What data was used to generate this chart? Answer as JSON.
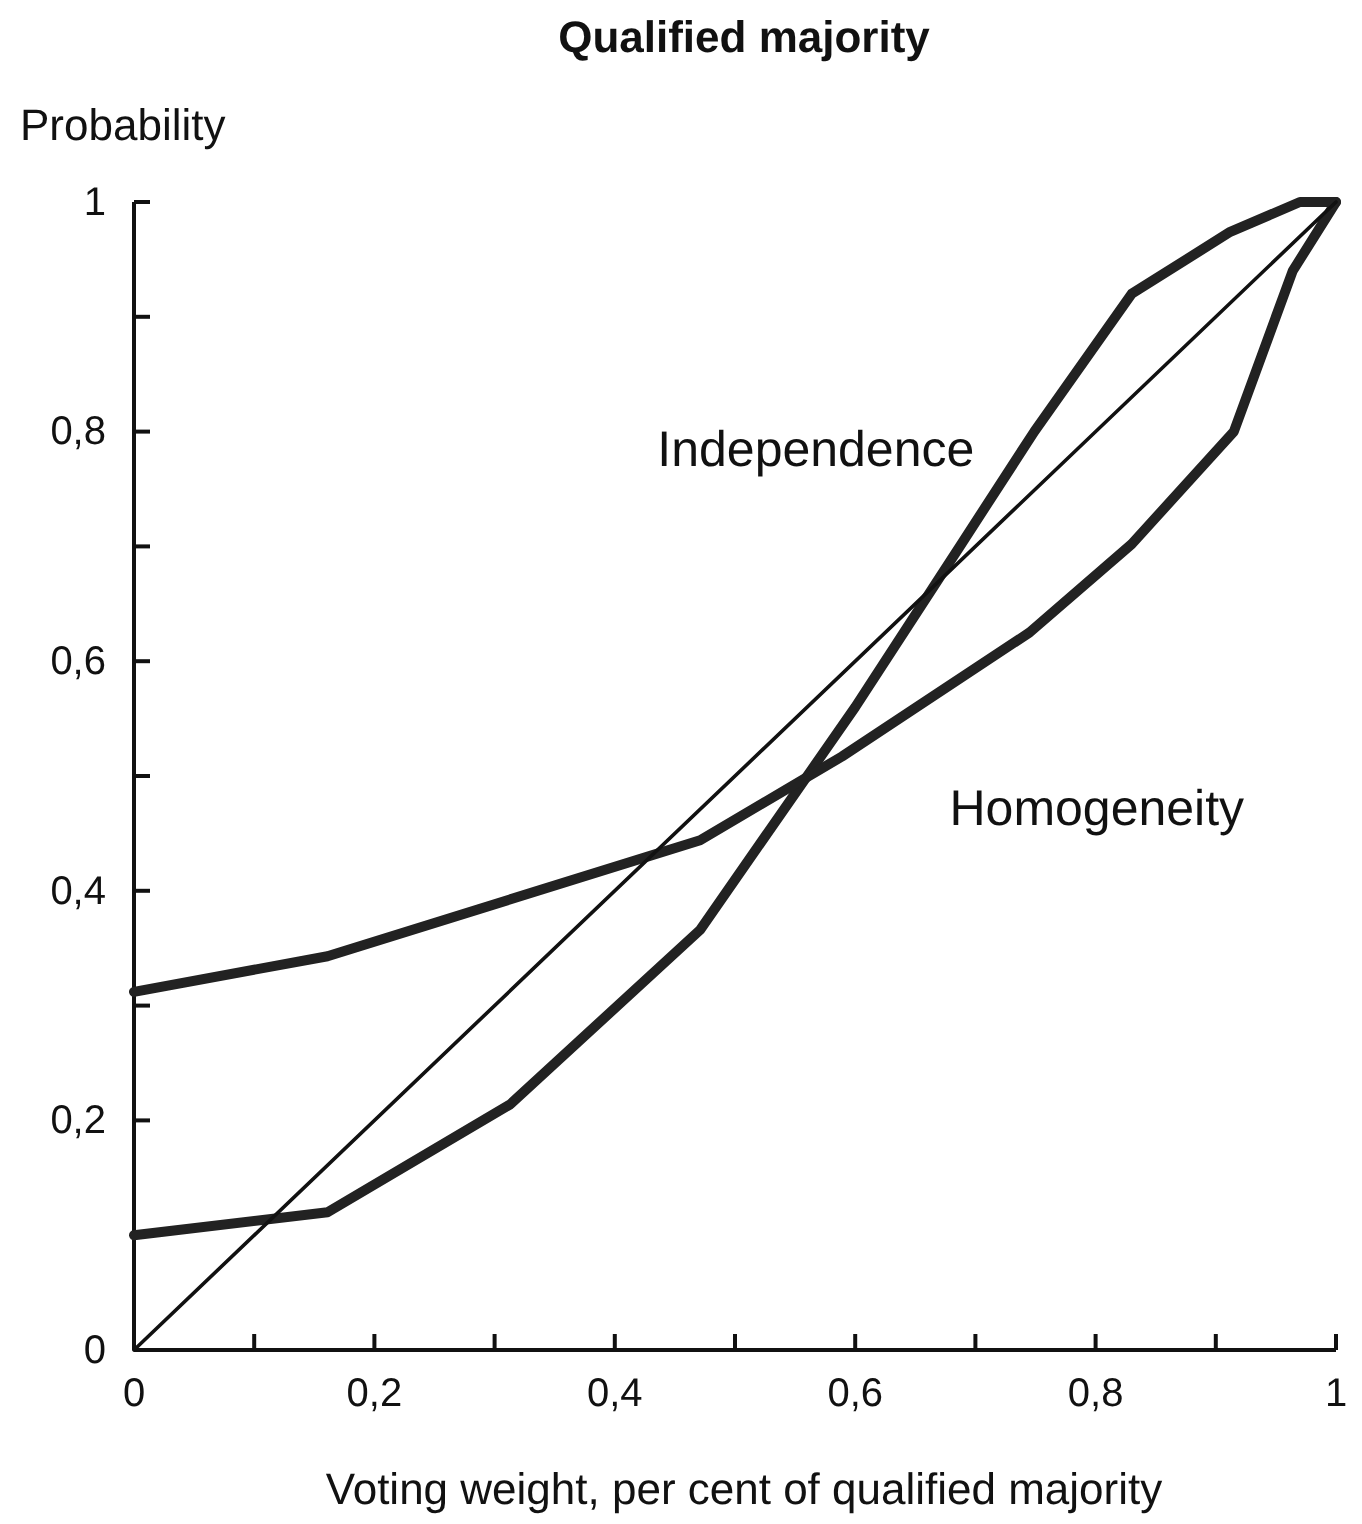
{
  "chart_data": {
    "type": "line",
    "title": "Qualified majority",
    "ylabel": "Probability",
    "xlabel": "Voting weight, per cent of qualified majority",
    "xlim": [
      0,
      1
    ],
    "ylim": [
      0,
      1
    ],
    "xticks": [
      0,
      {
        "value": 0.1,
        "label": null
      },
      {
        "value": 0.2,
        "label": "0,2"
      },
      {
        "value": 0.3,
        "label": null
      },
      {
        "value": 0.4,
        "label": "0,4"
      },
      {
        "value": 0.5,
        "label": null
      },
      {
        "value": 0.6,
        "label": "0,6"
      },
      {
        "value": 0.7,
        "label": null
      },
      {
        "value": 0.8,
        "label": "0,8"
      },
      {
        "value": 0.9,
        "label": null
      },
      1
    ],
    "yticks": [
      0,
      {
        "value": 0.1,
        "label": null
      },
      {
        "value": 0.2,
        "label": "0,2"
      },
      {
        "value": 0.3,
        "label": null
      },
      {
        "value": 0.4,
        "label": "0,4"
      },
      {
        "value": 0.5,
        "label": null
      },
      {
        "value": 0.6,
        "label": "0,6"
      },
      {
        "value": 0.7,
        "label": null
      },
      {
        "value": 0.8,
        "label": "0,8"
      },
      {
        "value": 0.9,
        "label": null
      },
      1
    ],
    "grid": false,
    "legend": false,
    "marker": "none",
    "line_style": "solid",
    "series": [
      {
        "name": "Independence",
        "color": "#222222",
        "x": [
          0,
          0.161,
          0.313,
          0.471,
          0.6,
          0.687,
          0.749,
          0.83,
          0.912,
          0.97,
          1
        ],
        "values": [
          0.1,
          0.12,
          0.214,
          0.366,
          0.56,
          0.7,
          0.8,
          0.92,
          0.974,
          1,
          1
        ]
      },
      {
        "name": "Homogeneity",
        "color": "#222222",
        "x": [
          0,
          0.161,
          0.471,
          0.589,
          0.745,
          0.83,
          0.915,
          0.964,
          1
        ],
        "values": [
          0.312,
          0.343,
          0.444,
          0.517,
          0.625,
          0.702,
          0.8,
          0.94,
          1
        ]
      },
      {
        "color": "#111111",
        "x": [
          0,
          1
        ],
        "values": [
          0,
          1
        ]
      }
    ]
  }
}
